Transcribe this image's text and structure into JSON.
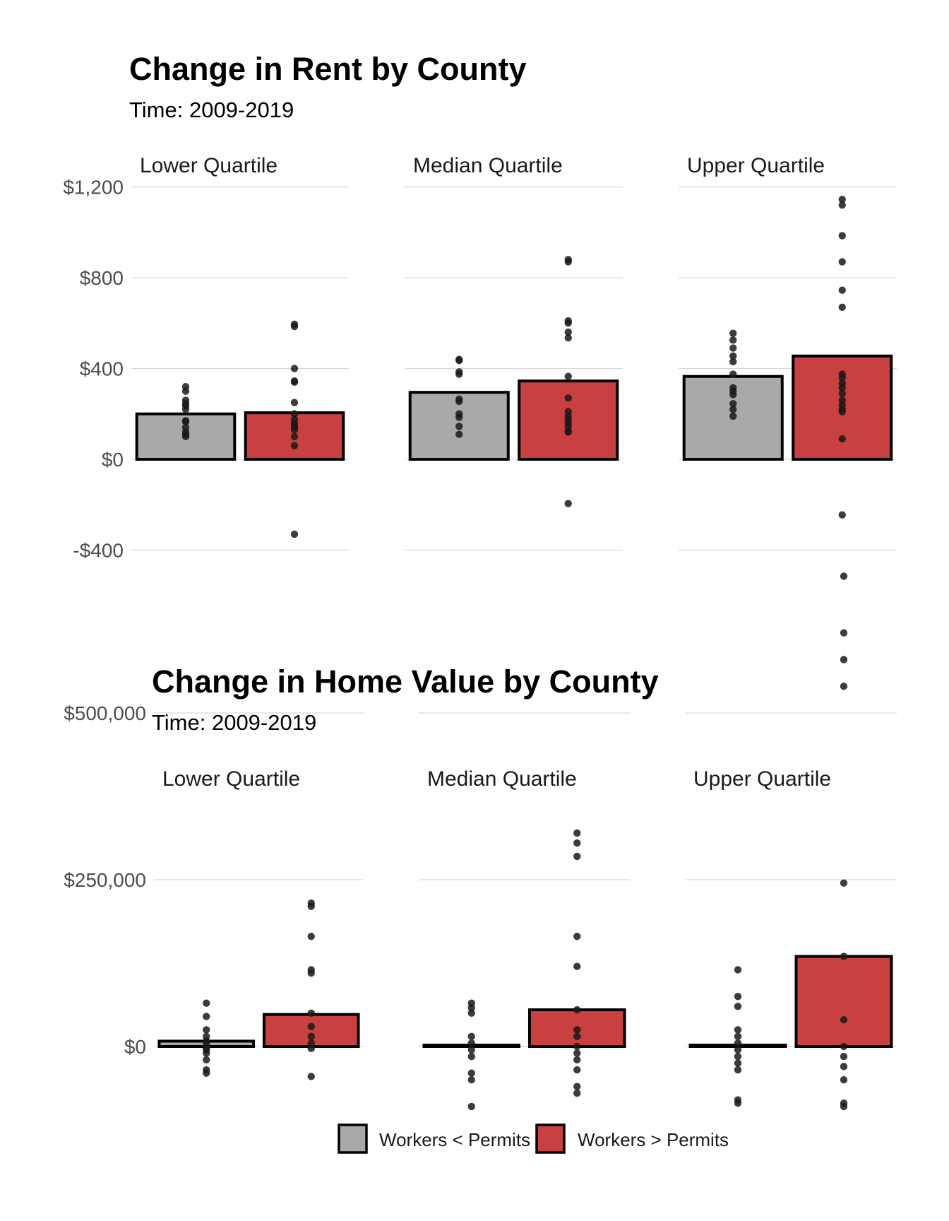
{
  "colors": {
    "workers_less": "#a9a9a9",
    "workers_more": "#c84040",
    "bar_outline": "#000000",
    "grid": "#d9d9d9",
    "point": "#1a1a1a"
  },
  "legend": {
    "placement": "bottom",
    "items": [
      {
        "label": "Workers < Permits",
        "color": "#a9a9a9"
      },
      {
        "label": "Workers > Permits",
        "color": "#c84040"
      }
    ]
  },
  "chart_data": [
    {
      "type": "bar",
      "title": "Change in Rent by County",
      "subtitle": "Time: 2009-2019",
      "xlabel": "",
      "ylabel": "",
      "ylim": [
        -450,
        1250
      ],
      "yticks": [
        -400,
        0,
        400,
        800,
        1200
      ],
      "ytick_labels": [
        "-$400",
        "$0",
        "$400",
        "$800",
        "$1,200"
      ],
      "grid": true,
      "categories": [
        "Workers < Permits",
        "Workers > Permits"
      ],
      "panels": [
        {
          "label": "Lower Quartile",
          "bars": [
            200,
            205
          ],
          "points": [
            [
              320,
              300,
              260,
              245,
              235,
              220,
              170,
              165,
              140,
              120,
              110,
              100
            ],
            [
              595,
              585,
              400,
              345,
              340,
              250,
              200,
              175,
              160,
              150,
              140,
              130,
              100,
              60,
              -330
            ]
          ]
        },
        {
          "label": "Median Quartile",
          "bars": [
            295,
            345
          ],
          "points": [
            [
              440,
              435,
              385,
              375,
              265,
              255,
              200,
              185,
              145,
              110
            ],
            [
              880,
              870,
              610,
              600,
              560,
              535,
              365,
              270,
              210,
              190,
              175,
              160,
              145,
              125,
              120,
              -195
            ]
          ]
        },
        {
          "label": "Upper Quartile",
          "bars": [
            365,
            455
          ],
          "points": [
            [
              555,
              525,
              490,
              455,
              430,
              375,
              315,
              300,
              285,
              245,
              220,
              190
            ],
            [
              1145,
              1120,
              985,
              870,
              745,
              670,
              375,
              360,
              335,
              315,
              290,
              260,
              240,
              220,
              210,
              90,
              -245
            ]
          ]
        }
      ]
    },
    {
      "type": "bar",
      "title": "Change in Home Value by County",
      "subtitle": "Time: 2009-2019",
      "xlabel": "",
      "ylabel": "",
      "ylim": [
        -120000,
        760000
      ],
      "yticks": [
        0,
        250000,
        500000
      ],
      "ytick_labels": [
        "$0",
        "$250,000",
        "$500,000"
      ],
      "grid": true,
      "categories": [
        "Workers < Permits",
        "Workers > Permits"
      ],
      "panels": [
        {
          "label": "Lower Quartile",
          "bars": [
            8000,
            48000
          ],
          "points": [
            [
              65000,
              45000,
              25000,
              15000,
              8000,
              3000,
              -2000,
              -5000,
              -10000,
              -20000,
              -35000,
              -40000
            ],
            [
              215000,
              210000,
              165000,
              115000,
              110000,
              50000,
              30000,
              15000,
              5000,
              -3000,
              -45000
            ]
          ]
        },
        {
          "label": "Median Quartile",
          "bars": [
            2000,
            55000
          ],
          "points": [
            [
              65000,
              58000,
              50000,
              15000,
              5000,
              -5000,
              -15000,
              -40000,
              -50000,
              -90000
            ],
            [
              320000,
              305000,
              285000,
              165000,
              120000,
              55000,
              25000,
              15000,
              0,
              -10000,
              -20000,
              -35000,
              -60000,
              -70000
            ]
          ]
        },
        {
          "label": "Upper Quartile",
          "bars": [
            2000,
            135000
          ],
          "points": [
            [
              115000,
              75000,
              60000,
              25000,
              15000,
              5000,
              -5000,
              -15000,
              -25000,
              -35000,
              -80000,
              -85000
            ],
            [
              705000,
              620000,
              580000,
              540000,
              245000,
              135000,
              40000,
              0,
              -15000,
              -30000,
              -50000,
              -85000,
              -90000
            ]
          ]
        }
      ]
    }
  ]
}
